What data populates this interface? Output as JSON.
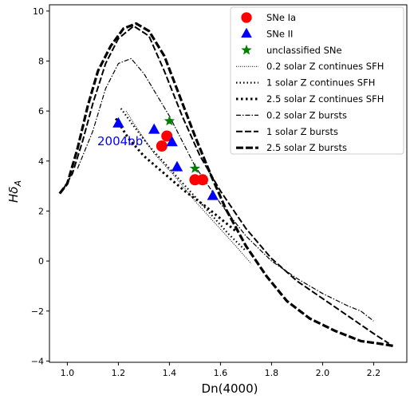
{
  "chart_data": {
    "type": "scatter",
    "xlabel": "Dn(4000)",
    "ylabel": "Hδ_A",
    "xlim": [
      0.93,
      2.33
    ],
    "ylim": [
      -4.05,
      10.25
    ],
    "xticks": [
      "1.0",
      "1.2",
      "1.4",
      "1.6",
      "1.8",
      "2.0",
      "2.2"
    ],
    "yticks": [
      "−4",
      "−2",
      "0",
      "2",
      "4",
      "6",
      "8",
      "10"
    ],
    "grid": false,
    "legend_position": "top-right",
    "annotations": [
      {
        "text": "2004bb",
        "x": 1.09,
        "y": 4.45,
        "color": "#0000ff"
      }
    ],
    "scatter_series": [
      {
        "name": "SNe Ia",
        "marker": "circle",
        "color": "#ff0000",
        "points": [
          [
            1.37,
            4.6
          ],
          [
            1.39,
            5.0
          ],
          [
            1.5,
            3.25
          ],
          [
            1.53,
            3.25
          ]
        ]
      },
      {
        "name": "SNe II",
        "marker": "triangle",
        "color": "#0000ff",
        "points": [
          [
            1.2,
            5.5
          ],
          [
            1.34,
            5.25
          ],
          [
            1.41,
            4.75
          ],
          [
            1.43,
            3.75
          ],
          [
            1.57,
            2.6
          ]
        ]
      },
      {
        "name": "unclassified SNe",
        "marker": "star",
        "color": "#008000",
        "points": [
          [
            1.4,
            5.6
          ],
          [
            1.5,
            3.7
          ]
        ]
      }
    ],
    "line_series": [
      {
        "name": "0.2 solar Z continues SFH",
        "style": "dotted-thin",
        "x": [
          1.23,
          1.28,
          1.34,
          1.42,
          1.5,
          1.58,
          1.66,
          1.72
        ],
        "y": [
          6.0,
          5.2,
          4.3,
          3.4,
          2.4,
          1.5,
          0.6,
          -0.1
        ]
      },
      {
        "name": "1 solar Z continues SFH",
        "style": "dotted",
        "x": [
          1.21,
          1.26,
          1.32,
          1.4,
          1.48,
          1.56,
          1.63,
          1.7
        ],
        "y": [
          6.1,
          5.4,
          4.6,
          3.7,
          2.8,
          1.9,
          1.1,
          0.4
        ]
      },
      {
        "name": "2.5 solar Z continues SFH",
        "style": "dotted-thick",
        "x": [
          1.19,
          1.24,
          1.3,
          1.38,
          1.46,
          1.54,
          1.6,
          1.66
        ],
        "y": [
          5.7,
          4.9,
          4.2,
          3.5,
          2.8,
          2.2,
          1.7,
          1.2
        ]
      },
      {
        "name": "0.2 solar Z bursts",
        "style": "dashdot",
        "x": [
          1.04,
          1.1,
          1.15,
          1.2,
          1.25,
          1.3,
          1.4,
          1.5,
          1.6,
          1.7,
          1.8,
          1.9,
          2.0,
          2.1,
          2.15,
          2.2
        ],
        "y": [
          3.7,
          5.2,
          6.9,
          7.9,
          8.1,
          7.5,
          5.8,
          3.8,
          2.3,
          1.0,
          0.0,
          -0.7,
          -1.3,
          -1.8,
          -2.0,
          -2.4
        ]
      },
      {
        "name": "1 solar Z bursts",
        "style": "dashed",
        "x": [
          0.98,
          1.02,
          1.06,
          1.1,
          1.15,
          1.2,
          1.26,
          1.32,
          1.38,
          1.45,
          1.52,
          1.6,
          1.7,
          1.8,
          1.9,
          2.0,
          2.1,
          2.2,
          2.26
        ],
        "y": [
          2.8,
          3.5,
          4.8,
          6.3,
          7.9,
          8.9,
          9.4,
          9.0,
          7.6,
          5.8,
          4.2,
          2.8,
          1.3,
          0.1,
          -0.8,
          -1.5,
          -2.2,
          -2.9,
          -3.3
        ]
      },
      {
        "name": "2.5 solar Z bursts",
        "style": "dashed-thick",
        "x": [
          0.97,
          1.0,
          1.04,
          1.08,
          1.12,
          1.17,
          1.22,
          1.27,
          1.32,
          1.38,
          1.44,
          1.5,
          1.56,
          1.62,
          1.7,
          1.78,
          1.86,
          1.95,
          2.05,
          2.15,
          2.22,
          2.28
        ],
        "y": [
          2.7,
          3.1,
          4.5,
          6.2,
          7.6,
          8.6,
          9.3,
          9.5,
          9.2,
          8.2,
          6.6,
          5.0,
          3.5,
          2.1,
          0.6,
          -0.6,
          -1.6,
          -2.3,
          -2.8,
          -3.2,
          -3.3,
          -3.4
        ]
      }
    ]
  }
}
